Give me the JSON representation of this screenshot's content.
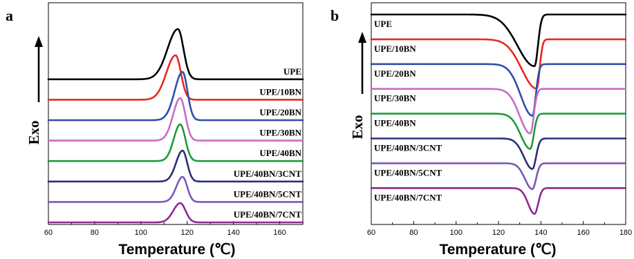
{
  "chart_data": [
    {
      "type": "line",
      "panel_label": "a",
      "xlabel": "Temperature (℃)",
      "ylabel": "Exo",
      "xlim": [
        60,
        170
      ],
      "xticks": [
        "60",
        "80",
        "100",
        "120",
        "140",
        "160"
      ],
      "peak_direction": "up",
      "series": [
        {
          "name": "UPE",
          "color": "#000000",
          "baseline": 0.5,
          "peak_x": 116,
          "peak_h": 2.6,
          "w_left": 4.5,
          "w_right": 2.4
        },
        {
          "name": "UPE/10BN",
          "color": "#e8281f",
          "baseline": 1.5,
          "peak_x": 115,
          "peak_h": 2.3,
          "w_left": 4.0,
          "w_right": 2.3
        },
        {
          "name": "UPE/20BN",
          "color": "#2e4fa8",
          "baseline": 2.5,
          "peak_x": 118,
          "peak_h": 2.5,
          "w_left": 3.4,
          "w_right": 2.1
        },
        {
          "name": "UPE/30BN",
          "color": "#c66cc7",
          "baseline": 3.5,
          "peak_x": 117,
          "peak_h": 2.2,
          "w_left": 3.1,
          "w_right": 2.2
        },
        {
          "name": "UPE/40BN",
          "color": "#1a9c3b",
          "baseline": 4.5,
          "peak_x": 117,
          "peak_h": 1.9,
          "w_left": 2.8,
          "w_right": 2.2
        },
        {
          "name": "UPE/40BN/3CNT",
          "color": "#2a2f78",
          "baseline": 5.5,
          "peak_x": 118,
          "peak_h": 1.6,
          "w_left": 2.8,
          "w_right": 2.0
        },
        {
          "name": "UPE/40BN/5CNT",
          "color": "#7b58b8",
          "baseline": 6.5,
          "peak_x": 118,
          "peak_h": 1.3,
          "w_left": 2.7,
          "w_right": 2.0
        },
        {
          "name": "UPE/40BN/7CNT",
          "color": "#8d2a8e",
          "baseline": 7.5,
          "peak_x": 117,
          "peak_h": 1.0,
          "w_left": 3.0,
          "w_right": 2.3
        }
      ]
    },
    {
      "type": "line",
      "panel_label": "b",
      "xlabel": "Temperature (℃)",
      "ylabel": "Exo",
      "xlim": [
        60,
        180
      ],
      "xticks": [
        "60",
        "80",
        "100",
        "120",
        "140",
        "160",
        "180"
      ],
      "peak_direction": "down",
      "series": [
        {
          "name": "UPE",
          "color": "#000000",
          "baseline": 0,
          "peak_x": 137,
          "peak_h": 2.2,
          "w_left": 8.0,
          "w_right": 1.6
        },
        {
          "name": "UPE/10BN",
          "color": "#e8281f",
          "baseline": 1,
          "peak_x": 138,
          "peak_h": 2.1,
          "w_left": 7.0,
          "w_right": 1.4
        },
        {
          "name": "UPE/20BN",
          "color": "#2e4fa8",
          "baseline": 2,
          "peak_x": 136,
          "peak_h": 2.2,
          "w_left": 5.5,
          "w_right": 1.6
        },
        {
          "name": "UPE/30BN",
          "color": "#c66cc7",
          "baseline": 3,
          "peak_x": 135,
          "peak_h": 1.9,
          "w_left": 5.0,
          "w_right": 1.6
        },
        {
          "name": "UPE/40BN",
          "color": "#1a9c3b",
          "baseline": 4,
          "peak_x": 135,
          "peak_h": 1.5,
          "w_left": 4.5,
          "w_right": 1.6
        },
        {
          "name": "UPE/40BN/3CNT",
          "color": "#2a2f78",
          "baseline": 5,
          "peak_x": 136,
          "peak_h": 1.3,
          "w_left": 4.0,
          "w_right": 1.7
        },
        {
          "name": "UPE/40BN/5CNT",
          "color": "#7b58b8",
          "baseline": 6,
          "peak_x": 136,
          "peak_h": 1.1,
          "w_left": 3.5,
          "w_right": 1.7
        },
        {
          "name": "UPE/40BN/7CNT",
          "color": "#8d2a8e",
          "baseline": 7,
          "peak_x": 137,
          "peak_h": 1.1,
          "w_left": 3.0,
          "w_right": 1.7
        }
      ]
    }
  ]
}
